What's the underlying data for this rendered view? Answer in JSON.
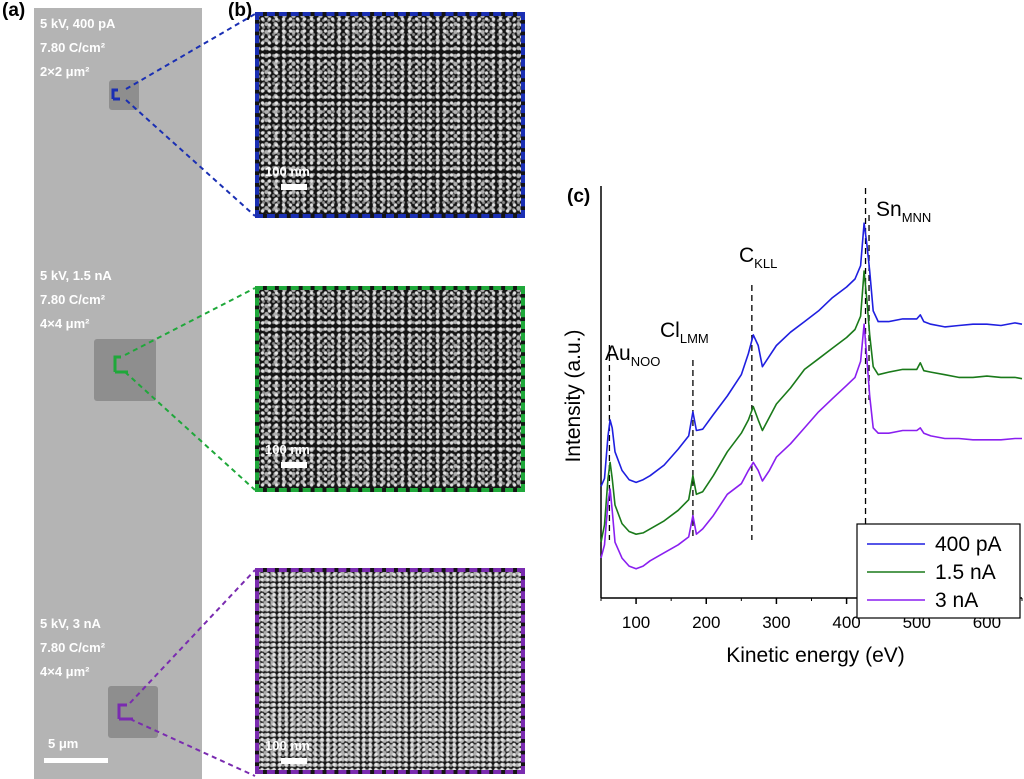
{
  "panels": {
    "a": "(a)",
    "b": "(b)",
    "c": "(c)"
  },
  "sem": {
    "annotations": [
      {
        "line1": "5 kV, 400 pA",
        "line2": "7.80 C/cm²",
        "line3": "2×2 μm²",
        "color": "#1a2fb3"
      },
      {
        "line1": "5 kV, 1.5 nA",
        "line2": "7.80 C/cm²",
        "line3": "4×4 μm²",
        "color": "#1fa83a"
      },
      {
        "line1": "5 kV, 3 nA",
        "line2": "7.80 C/cm²",
        "line3": "4×4 μm²",
        "color": "#7a2bb0"
      }
    ],
    "overview_scalebar": "5 μm",
    "zoom_scalebar": "100 nm",
    "zoom_colors": [
      "#1a2fb3",
      "#1fa83a",
      "#7a2bb0"
    ]
  },
  "chart_data": {
    "type": "line",
    "xlabel": "Kinetic energy (eV)",
    "ylabel": "Intensity (a.u.)",
    "xlim": [
      50,
      650
    ],
    "xticks": [
      100,
      200,
      300,
      400,
      500,
      600
    ],
    "yticks_shown": false,
    "legend_position": "bottom-right",
    "peaks": [
      {
        "label": "Au",
        "sub": "NOO",
        "x": 62
      },
      {
        "label": "Cl",
        "sub": "LMM",
        "x": 181
      },
      {
        "label": "C",
        "sub": "KLL",
        "x": 265
      },
      {
        "label": "Sn",
        "sub": "MNN",
        "x": 427
      }
    ],
    "series": [
      {
        "name": "400 pA",
        "color": "#1f1fe0",
        "x": [
          50,
          55,
          60,
          63,
          66,
          70,
          80,
          90,
          100,
          110,
          120,
          140,
          160,
          175,
          181,
          186,
          195,
          210,
          230,
          250,
          260,
          267,
          274,
          280,
          290,
          300,
          320,
          340,
          360,
          380,
          400,
          412,
          420,
          425,
          429,
          433,
          438,
          445,
          460,
          480,
          500,
          505,
          510,
          520,
          540,
          560,
          580,
          600,
          620,
          640,
          650
        ],
        "y": [
          0.84,
          0.9,
          1.22,
          1.34,
          1.28,
          1.1,
          0.96,
          0.89,
          0.87,
          0.89,
          0.92,
          1.0,
          1.12,
          1.22,
          1.4,
          1.26,
          1.27,
          1.38,
          1.52,
          1.68,
          1.84,
          1.98,
          1.9,
          1.74,
          1.82,
          1.9,
          2.0,
          2.08,
          2.16,
          2.26,
          2.34,
          2.4,
          2.5,
          2.82,
          2.66,
          2.46,
          2.16,
          2.08,
          2.08,
          2.1,
          2.1,
          2.13,
          2.08,
          2.06,
          2.04,
          2.05,
          2.06,
          2.06,
          2.05,
          2.07,
          2.06
        ]
      },
      {
        "name": "1.5 nA",
        "color": "#1a7a1a",
        "x": [
          50,
          55,
          60,
          63,
          66,
          70,
          80,
          90,
          100,
          110,
          120,
          140,
          160,
          175,
          181,
          186,
          195,
          210,
          230,
          250,
          260,
          267,
          274,
          280,
          290,
          300,
          320,
          340,
          360,
          380,
          400,
          412,
          420,
          425,
          429,
          433,
          438,
          445,
          460,
          480,
          500,
          505,
          510,
          520,
          540,
          560,
          580,
          600,
          620,
          640,
          650
        ],
        "y": [
          0.42,
          0.55,
          0.9,
          1.02,
          0.9,
          0.7,
          0.56,
          0.5,
          0.48,
          0.49,
          0.52,
          0.58,
          0.66,
          0.74,
          0.92,
          0.78,
          0.8,
          0.92,
          1.1,
          1.24,
          1.34,
          1.44,
          1.34,
          1.26,
          1.36,
          1.46,
          1.58,
          1.72,
          1.8,
          1.88,
          1.96,
          2.02,
          2.12,
          2.46,
          2.24,
          1.98,
          1.74,
          1.68,
          1.7,
          1.72,
          1.72,
          1.77,
          1.71,
          1.7,
          1.68,
          1.66,
          1.66,
          1.67,
          1.66,
          1.66,
          1.65
        ]
      },
      {
        "name": "3 nA",
        "color": "#8a1ff0",
        "x": [
          50,
          55,
          60,
          63,
          66,
          70,
          80,
          90,
          100,
          110,
          120,
          140,
          160,
          175,
          181,
          186,
          195,
          210,
          230,
          250,
          260,
          267,
          274,
          280,
          290,
          300,
          320,
          340,
          360,
          380,
          400,
          412,
          420,
          425,
          429,
          433,
          438,
          445,
          460,
          480,
          500,
          505,
          510,
          520,
          540,
          560,
          580,
          600,
          620,
          640,
          650
        ],
        "y": [
          0.3,
          0.4,
          0.72,
          0.82,
          0.66,
          0.42,
          0.3,
          0.24,
          0.22,
          0.24,
          0.28,
          0.34,
          0.4,
          0.46,
          0.62,
          0.48,
          0.52,
          0.62,
          0.78,
          0.86,
          0.96,
          1.02,
          0.96,
          0.88,
          0.96,
          1.06,
          1.16,
          1.28,
          1.4,
          1.5,
          1.6,
          1.66,
          1.78,
          2.06,
          1.8,
          1.52,
          1.28,
          1.24,
          1.24,
          1.26,
          1.26,
          1.28,
          1.24,
          1.22,
          1.2,
          1.2,
          1.19,
          1.19,
          1.19,
          1.2,
          1.2
        ]
      }
    ]
  }
}
